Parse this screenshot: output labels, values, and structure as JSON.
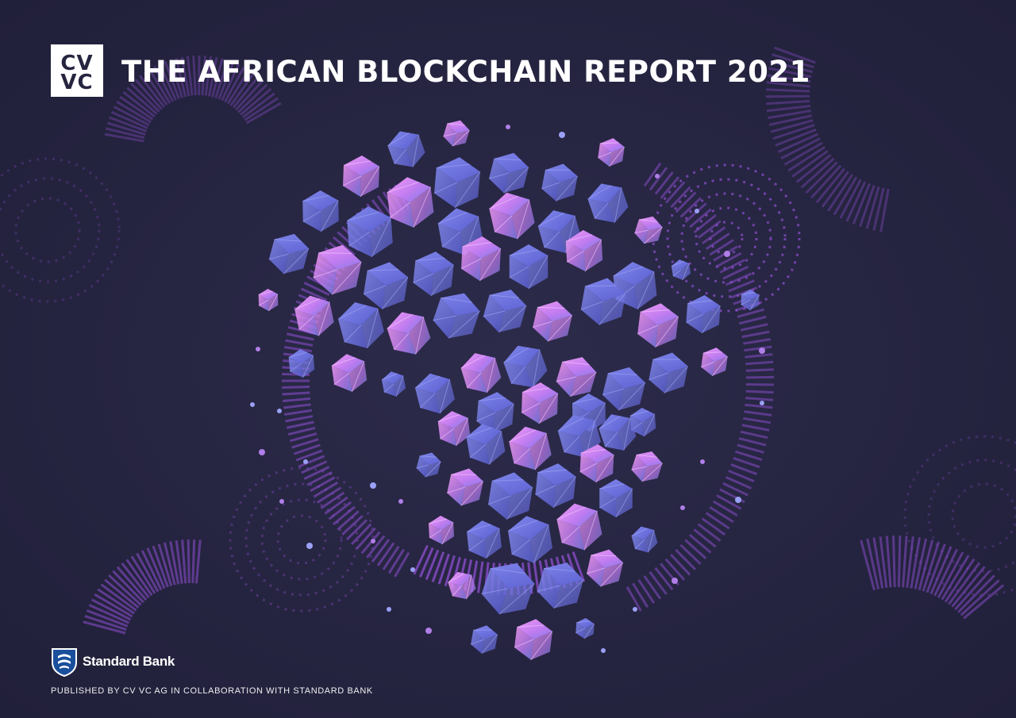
{
  "brand": {
    "logo_line_1": "CV",
    "logo_line_2": "VC",
    "colors": {
      "background": "#262540",
      "cube_blue": "#6e74e4",
      "cube_pink": "#d883f0",
      "accent_purple": "#8f4fd1"
    }
  },
  "cover": {
    "title": "THE AFRICAN BLOCKCHAIN REPORT 2021",
    "illustration": "cubes-forming-africa",
    "partner_logo_name": "Standard Bank",
    "partner_icon": "shield-icon",
    "publisher_line": "PUBLISHED BY CV VC AG IN COLLABORATION WITH STANDARD BANK"
  }
}
